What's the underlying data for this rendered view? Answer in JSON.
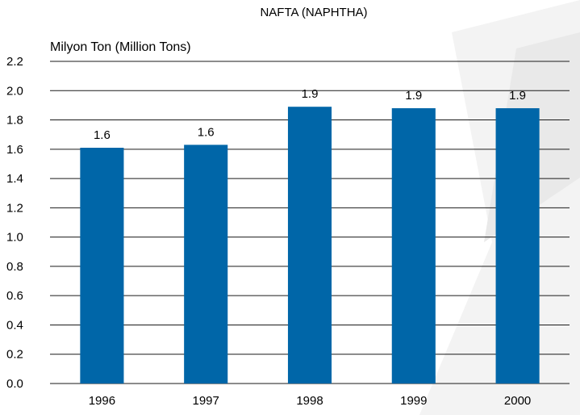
{
  "chart_data": {
    "type": "bar",
    "title": "NAFTA (NAPHTHA)",
    "ylabel": "Milyon Ton (Million Tons)",
    "xlabel": "",
    "categories": [
      "1996",
      "1997",
      "1998",
      "1999",
      "2000"
    ],
    "values": [
      1.61,
      1.63,
      1.89,
      1.88,
      1.88
    ],
    "data_labels": [
      "1.6",
      "1.6",
      "1.9",
      "1.9",
      "1.9"
    ],
    "ylim": [
      0,
      2.2
    ],
    "yticks": [
      0.0,
      0.2,
      0.4,
      0.6,
      0.8,
      1.0,
      1.2,
      1.4,
      1.6,
      1.8,
      2.0,
      2.2
    ],
    "ytick_labels": [
      "0.0",
      "0.2",
      "0.4",
      "0.6",
      "0.8",
      "1.0",
      "1.2",
      "1.4",
      "1.6",
      "1.8",
      "2.0",
      "2.2"
    ],
    "grid": true,
    "legend": "none",
    "bar_color": "#0066a8",
    "background_decoration_color": "#ececec"
  }
}
